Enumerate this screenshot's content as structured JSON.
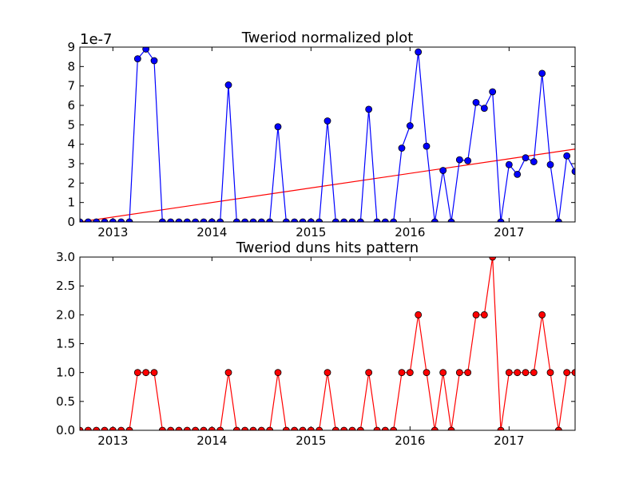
{
  "chart_data": [
    {
      "type": "line",
      "title": "Tweriod normalized plot",
      "xlabel": "",
      "ylabel": "",
      "y_offset_label": "1e-7",
      "y_scale": 1e-07,
      "x_tick_labels": [
        "2013",
        "2014",
        "2015",
        "2016",
        "2017"
      ],
      "x_tick_dates": [
        "2013-01-01",
        "2014-01-01",
        "2015-01-01",
        "2016-01-01",
        "2017-01-01"
      ],
      "xlim": [
        "2012-09-01",
        "2017-09-01"
      ],
      "ylim": [
        0,
        9
      ],
      "y_ticks": [
        "0",
        "1",
        "2",
        "3",
        "4",
        "5",
        "6",
        "7",
        "8",
        "9"
      ],
      "grid": false,
      "colors": {
        "series": "#0000ff",
        "trend": "#ff0000"
      },
      "series": [
        {
          "marker": "circle",
          "x": [
            "2012-09-01",
            "2012-10-01",
            "2012-11-01",
            "2012-12-01",
            "2013-01-01",
            "2013-02-01",
            "2013-03-01",
            "2013-04-01",
            "2013-05-01",
            "2013-06-01",
            "2013-07-01",
            "2013-08-01",
            "2013-09-01",
            "2013-10-01",
            "2013-11-01",
            "2013-12-01",
            "2014-01-01",
            "2014-02-01",
            "2014-03-01",
            "2014-04-01",
            "2014-05-01",
            "2014-06-01",
            "2014-07-01",
            "2014-08-01",
            "2014-09-01",
            "2014-10-01",
            "2014-11-01",
            "2014-12-01",
            "2015-01-01",
            "2015-02-01",
            "2015-03-01",
            "2015-04-01",
            "2015-05-01",
            "2015-06-01",
            "2015-07-01",
            "2015-08-01",
            "2015-09-01",
            "2015-10-01",
            "2015-11-01",
            "2015-12-01",
            "2016-01-01",
            "2016-02-01",
            "2016-03-01",
            "2016-04-01",
            "2016-05-01",
            "2016-06-01",
            "2016-07-01",
            "2016-08-01",
            "2016-09-01",
            "2016-10-01",
            "2016-11-01",
            "2016-12-01",
            "2017-01-01",
            "2017-02-01",
            "2017-03-01",
            "2017-04-01",
            "2017-05-01",
            "2017-06-01",
            "2017-07-01",
            "2017-08-01",
            "2017-09-01"
          ],
          "y": [
            0,
            0,
            0,
            0,
            0,
            0,
            0,
            8.4,
            8.9,
            8.3,
            0,
            0,
            0,
            0,
            0,
            0,
            0,
            0,
            7.05,
            0,
            0,
            0,
            0,
            0,
            4.9,
            0,
            0,
            0,
            0,
            0,
            5.2,
            0,
            0,
            0,
            0,
            5.8,
            0,
            0,
            0,
            3.8,
            4.95,
            8.75,
            3.9,
            0,
            2.65,
            0,
            3.2,
            3.15,
            6.15,
            5.85,
            6.7,
            0,
            2.95,
            2.45,
            3.3,
            3.1,
            7.65,
            2.95,
            0,
            3.4,
            2.6
          ]
        }
      ],
      "trend_line": {
        "x": [
          "2012-09-01",
          "2017-09-01"
        ],
        "y": [
          0,
          3.75
        ]
      }
    },
    {
      "type": "line",
      "title": "Tweriod duns hits pattern",
      "xlabel": "",
      "ylabel": "",
      "x_tick_labels": [
        "2013",
        "2014",
        "2015",
        "2016",
        "2017"
      ],
      "x_tick_dates": [
        "2013-01-01",
        "2014-01-01",
        "2015-01-01",
        "2016-01-01",
        "2017-01-01"
      ],
      "xlim": [
        "2012-09-01",
        "2017-09-01"
      ],
      "ylim": [
        0,
        3
      ],
      "y_ticks": [
        "0.0",
        "0.5",
        "1.0",
        "1.5",
        "2.0",
        "2.5",
        "3.0"
      ],
      "grid": false,
      "colors": {
        "series": "#ff0000"
      },
      "series": [
        {
          "marker": "circle",
          "x": [
            "2012-09-01",
            "2012-10-01",
            "2012-11-01",
            "2012-12-01",
            "2013-01-01",
            "2013-02-01",
            "2013-03-01",
            "2013-04-01",
            "2013-05-01",
            "2013-06-01",
            "2013-07-01",
            "2013-08-01",
            "2013-09-01",
            "2013-10-01",
            "2013-11-01",
            "2013-12-01",
            "2014-01-01",
            "2014-02-01",
            "2014-03-01",
            "2014-04-01",
            "2014-05-01",
            "2014-06-01",
            "2014-07-01",
            "2014-08-01",
            "2014-09-01",
            "2014-10-01",
            "2014-11-01",
            "2014-12-01",
            "2015-01-01",
            "2015-02-01",
            "2015-03-01",
            "2015-04-01",
            "2015-05-01",
            "2015-06-01",
            "2015-07-01",
            "2015-08-01",
            "2015-09-01",
            "2015-10-01",
            "2015-11-01",
            "2015-12-01",
            "2016-01-01",
            "2016-02-01",
            "2016-03-01",
            "2016-04-01",
            "2016-05-01",
            "2016-06-01",
            "2016-07-01",
            "2016-08-01",
            "2016-09-01",
            "2016-10-01",
            "2016-11-01",
            "2016-12-01",
            "2017-01-01",
            "2017-02-01",
            "2017-03-01",
            "2017-04-01",
            "2017-05-01",
            "2017-06-01",
            "2017-07-01",
            "2017-08-01",
            "2017-09-01"
          ],
          "y": [
            0,
            0,
            0,
            0,
            0,
            0,
            0,
            1,
            1,
            1,
            0,
            0,
            0,
            0,
            0,
            0,
            0,
            0,
            1,
            0,
            0,
            0,
            0,
            0,
            1,
            0,
            0,
            0,
            0,
            0,
            1,
            0,
            0,
            0,
            0,
            1,
            0,
            0,
            0,
            1,
            1,
            2,
            1,
            0,
            1,
            0,
            1,
            1,
            2,
            2,
            3,
            0,
            1,
            1,
            1,
            1,
            2,
            1,
            0,
            1,
            1
          ]
        }
      ]
    }
  ]
}
